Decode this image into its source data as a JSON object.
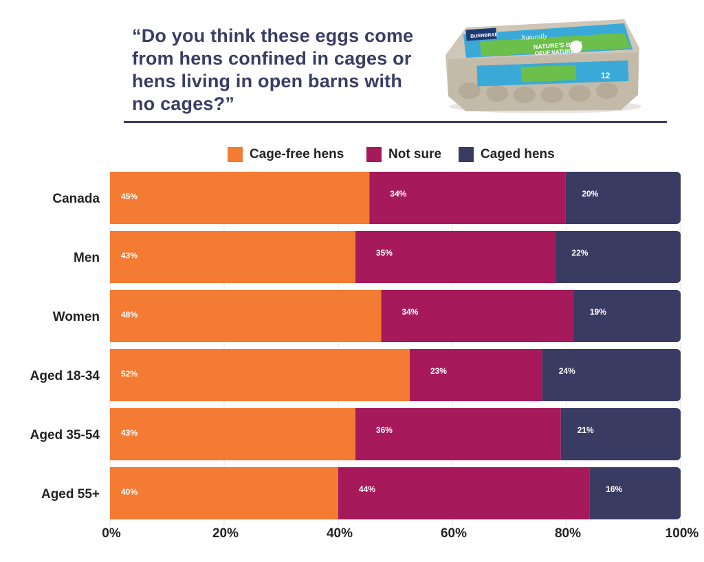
{
  "question": "“Do you think these eggs come from hens confined in cages or hens living in open barns with no cages?”",
  "image": {
    "description_icon": "egg-carton-image",
    "carton_text": [
      "BURNBRAE",
      "Naturally",
      "NATURE'S BEST",
      "OEUF NATUREL",
      "12"
    ]
  },
  "chart_data": {
    "type": "bar",
    "orientation": "horizontal",
    "stacked": true,
    "categories": [
      "Canada",
      "Men",
      "Women",
      "Aged 18-34",
      "Aged 35-54",
      "Aged 55+"
    ],
    "series": [
      {
        "name": "Cage-free hens",
        "color": "#f47b33",
        "values": [
          45,
          43,
          48,
          52,
          43,
          40
        ]
      },
      {
        "name": "Not sure",
        "color": "#a6195b",
        "values": [
          34,
          35,
          34,
          23,
          36,
          44
        ]
      },
      {
        "name": "Caged hens",
        "color": "#393b63",
        "values": [
          20,
          22,
          19,
          24,
          21,
          16
        ]
      }
    ],
    "value_labels": [
      [
        "45%",
        "34%",
        "20%"
      ],
      [
        "43%",
        "35%",
        "22%"
      ],
      [
        "48%",
        "34%",
        "19%"
      ],
      [
        "52%",
        "23%",
        "24%"
      ],
      [
        "43%",
        "36%",
        "21%"
      ],
      [
        "40%",
        "44%",
        "16%"
      ]
    ],
    "xticks": [
      "0%",
      "20%",
      "40%",
      "60%",
      "80%",
      "100%"
    ],
    "xlim": [
      0,
      100
    ],
    "grid": true,
    "legend_position": "top"
  }
}
